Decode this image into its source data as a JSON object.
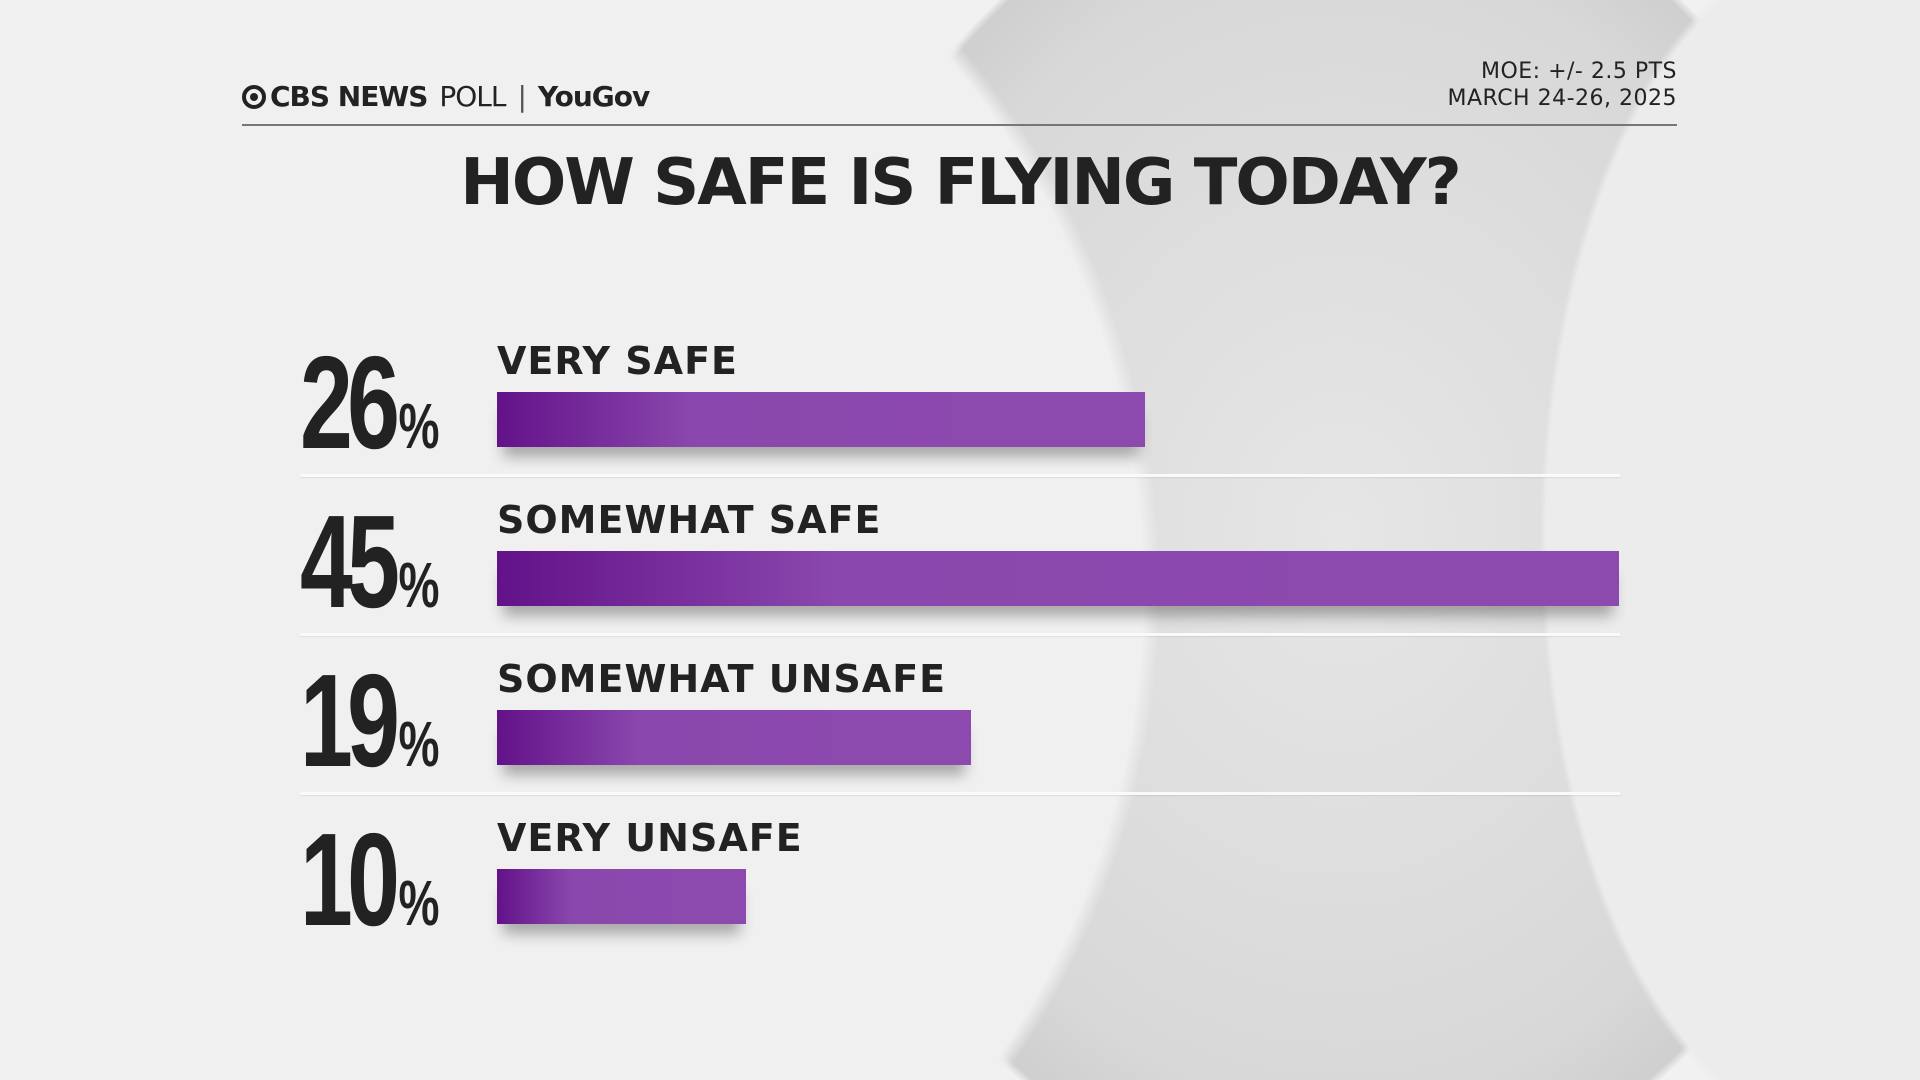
{
  "header": {
    "brand_cbs": "CBS NEWS",
    "brand_poll": "POLL",
    "brand_partner": "YouGov",
    "moe": "MOE: +/- 2.5 PTS",
    "date": "MARCH 24-26, 2025"
  },
  "colors": {
    "bar": "#8d4aae",
    "bar_dark": "#631289",
    "text": "#222222"
  },
  "chart_data": {
    "type": "bar",
    "orientation": "horizontal",
    "title": "HOW SAFE IS FLYING TODAY?",
    "categories": [
      "VERY SAFE",
      "SOMEWHAT SAFE",
      "SOMEWHAT UNSAFE",
      "VERY UNSAFE"
    ],
    "values": [
      26,
      45,
      19,
      10
    ],
    "value_labels": [
      "26",
      "45",
      "19",
      "10"
    ],
    "unit": "%",
    "grid": false
  }
}
